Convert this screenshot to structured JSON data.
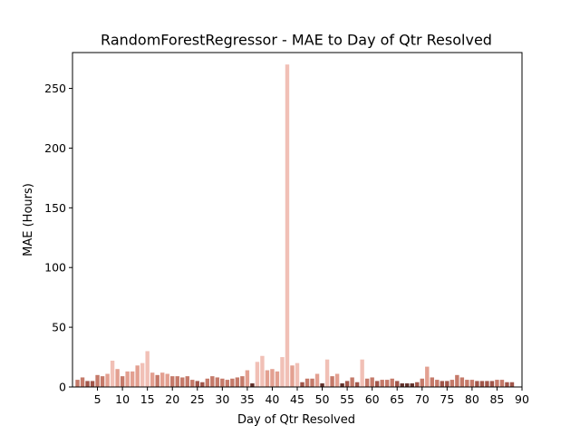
{
  "chart_data": {
    "type": "bar",
    "title": "RandomForestRegressor - MAE to Day of Qtr Resolved",
    "xlabel": "Day of Qtr Resolved",
    "ylabel": "MAE (Hours)",
    "xlim": [
      0,
      90
    ],
    "ylim": [
      0,
      280
    ],
    "xticks": [
      5,
      10,
      15,
      20,
      25,
      30,
      35,
      40,
      45,
      50,
      55,
      60,
      65,
      70,
      75,
      80,
      85,
      90
    ],
    "yticks": [
      0,
      50,
      100,
      150,
      200,
      250
    ],
    "grid": false,
    "legend": "none",
    "x": [
      1,
      2,
      3,
      4,
      5,
      6,
      7,
      8,
      9,
      10,
      11,
      12,
      13,
      14,
      15,
      16,
      17,
      18,
      19,
      20,
      21,
      22,
      23,
      24,
      25,
      26,
      27,
      28,
      29,
      30,
      31,
      32,
      33,
      34,
      35,
      36,
      37,
      38,
      39,
      40,
      41,
      42,
      43,
      44,
      45,
      46,
      47,
      48,
      49,
      50,
      51,
      52,
      53,
      54,
      55,
      56,
      57,
      58,
      59,
      60,
      61,
      62,
      63,
      64,
      65,
      66,
      67,
      68,
      69,
      70,
      71,
      72,
      73,
      74,
      75,
      76,
      77,
      78,
      79,
      80,
      81,
      82,
      83,
      84,
      85,
      86,
      87,
      88
    ],
    "values": [
      6,
      8,
      5,
      5,
      10,
      9,
      11,
      22,
      15,
      9,
      13,
      13,
      18,
      20,
      30,
      12,
      10,
      12,
      11,
      9,
      9,
      8,
      9,
      6,
      5,
      4,
      7,
      9,
      8,
      7,
      6,
      7,
      8,
      9,
      14,
      3,
      21,
      26,
      14,
      15,
      13,
      25,
      270,
      18,
      20,
      4,
      7,
      7,
      11,
      3,
      23,
      9,
      11,
      3,
      5,
      8,
      4,
      23,
      7,
      8,
      5,
      6,
      6,
      7,
      5,
      3,
      3,
      3,
      4,
      7,
      17,
      8,
      6,
      5,
      5,
      6,
      10,
      8,
      6,
      6,
      5,
      5,
      5,
      5,
      6,
      6,
      4,
      4
    ],
    "colors": {
      "pale": "#f1c0b6",
      "light": "#e3a091",
      "mid": "#c57a6a",
      "dark": "#a1564a",
      "darkest": "#62302a",
      "axis": "#000000",
      "background": "#ffffff"
    }
  }
}
